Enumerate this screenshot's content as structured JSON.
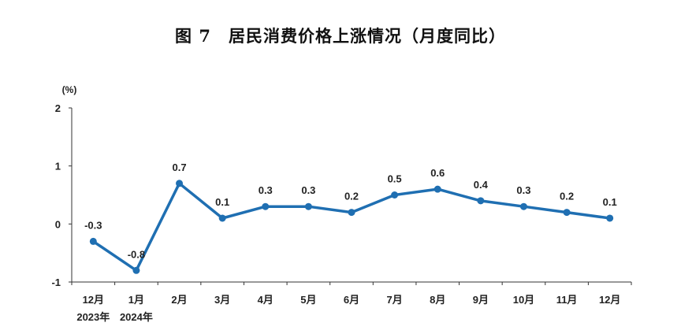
{
  "chart_data": {
    "type": "line",
    "title": "图 7　居民消费价格上涨情况（月度同比）",
    "ylabel": "(%)",
    "xlabel": "",
    "categories": [
      "12月",
      "1月",
      "2月",
      "3月",
      "4月",
      "5月",
      "6月",
      "7月",
      "8月",
      "9月",
      "10月",
      "11月",
      "12月"
    ],
    "year_labels": [
      "2023年",
      "2024年"
    ],
    "series": [
      {
        "values": [
          -0.3,
          -0.8,
          0.7,
          0.1,
          0.3,
          0.3,
          0.2,
          0.5,
          0.6,
          0.4,
          0.3,
          0.2,
          0.1
        ]
      }
    ],
    "data_labels": [
      "-0.3",
      "-0.8",
      "0.7",
      "0.1",
      "0.3",
      "0.3",
      "0.2",
      "0.5",
      "0.6",
      "0.4",
      "0.3",
      "0.2",
      "0.1"
    ],
    "y_ticks": [
      "2",
      "1",
      "0",
      "-1"
    ],
    "ylim": [
      -1,
      2
    ],
    "grid": false,
    "line_color": "#1f6fb2"
  }
}
